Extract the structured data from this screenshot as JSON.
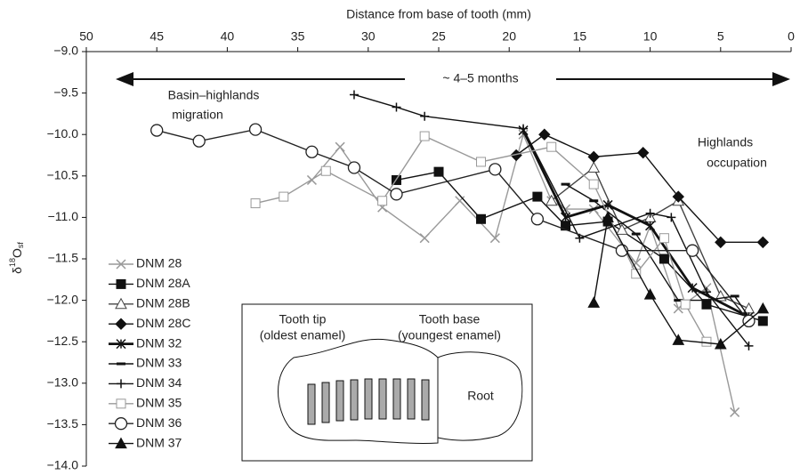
{
  "chart_data": {
    "type": "line",
    "x_axis_label": "Distance from base of tooth (mm)",
    "y_axis_label": {
      "base": "δ",
      "sup": "18",
      "main": "O",
      "sub": "sf"
    },
    "xlim": [
      50,
      0
    ],
    "xticks": [
      50,
      45,
      40,
      35,
      30,
      25,
      20,
      15,
      10,
      5,
      0
    ],
    "ylim": [
      -14,
      -9
    ],
    "yticks": [
      {
        "value": -9,
        "label": "−9.0"
      },
      {
        "value": -9.5,
        "label": "−9.5"
      },
      {
        "value": -10,
        "label": "−10.0"
      },
      {
        "value": -10.5,
        "label": "−10.5"
      },
      {
        "value": -11,
        "label": "−11.0"
      },
      {
        "value": -11.5,
        "label": "−11.5"
      },
      {
        "value": -12,
        "label": "−12.0"
      },
      {
        "value": -12.5,
        "label": "−12.5"
      },
      {
        "value": -13,
        "label": "−13.0"
      },
      {
        "value": -13.5,
        "label": "−13.5"
      },
      {
        "value": -14,
        "label": "−14.0"
      }
    ],
    "annotations": {
      "span": "~ 4–5 months",
      "left_1": "Basin–highlands",
      "left_2": "migration",
      "right_1": "Highlands",
      "right_2": "occupation",
      "tip_1": "Tooth tip",
      "tip_2": "(oldest enamel)",
      "base_1": "Tooth base",
      "base_2": "(youngest enamel)",
      "root": "Root"
    },
    "legend_position": "lower left",
    "series": [
      {
        "name": "DNM 28",
        "color": "#999999",
        "marker": "cross",
        "x": [
          34,
          32,
          29,
          26,
          23.5,
          21,
          19,
          17,
          16,
          14,
          11,
          10,
          8,
          6,
          4
        ],
        "values": [
          -10.55,
          -10.15,
          -10.88,
          -11.25,
          -10.8,
          -11.25,
          -10.0,
          -10.8,
          -10.9,
          -10.9,
          -11.55,
          -11.1,
          -12.1,
          -11.85,
          -13.35
        ]
      },
      {
        "name": "DNM 28A",
        "color": "#111111",
        "marker": "square",
        "x": [
          28,
          25,
          22,
          18,
          16,
          13,
          9,
          6,
          2
        ],
        "values": [
          -10.55,
          -10.45,
          -11.02,
          -10.75,
          -11.1,
          -11.05,
          -11.5,
          -12.05,
          -12.25
        ]
      },
      {
        "name": "DNM 28B",
        "color": "#444444",
        "marker": "triangle-open",
        "x": [
          17,
          14,
          12,
          10,
          8,
          5,
          3
        ],
        "values": [
          -10.8,
          -10.4,
          -11.15,
          -11.0,
          -10.8,
          -11.95,
          -12.1
        ]
      },
      {
        "name": "DNM 28C",
        "color": "#111111",
        "marker": "diamond",
        "x": [
          19.5,
          17.5,
          14,
          10.5,
          8,
          5,
          2
        ],
        "values": [
          -10.25,
          -10.0,
          -10.27,
          -10.22,
          -10.75,
          -11.3,
          -11.3
        ]
      },
      {
        "name": "DNM 32",
        "color": "#111111",
        "marker": "star",
        "thick": true,
        "x": [
          19,
          16,
          13,
          10,
          7,
          3
        ],
        "values": [
          -9.95,
          -11.0,
          -10.85,
          -11.1,
          -11.85,
          -12.2
        ]
      },
      {
        "name": "DNM 33",
        "color": "#111111",
        "marker": "dash",
        "x": [
          16,
          14,
          11,
          8,
          6,
          4,
          3
        ],
        "values": [
          -10.6,
          -10.8,
          -11.2,
          -12.0,
          -12.0,
          -11.95,
          -12.2
        ]
      },
      {
        "name": "DNM 34",
        "color": "#111111",
        "marker": "plus",
        "x": [
          31,
          28,
          26,
          19,
          15,
          10,
          8.5,
          6,
          3
        ],
        "values": [
          -9.52,
          -9.67,
          -9.78,
          -9.93,
          -11.25,
          -10.95,
          -11.0,
          -11.9,
          -12.55
        ]
      },
      {
        "name": "DNM 35",
        "color": "#999999",
        "marker": "square-open",
        "x": [
          38,
          36,
          33,
          29,
          26,
          22,
          17,
          14,
          11,
          9,
          7.5,
          6
        ],
        "values": [
          -10.83,
          -10.75,
          -10.44,
          -10.8,
          -10.02,
          -10.33,
          -10.15,
          -10.6,
          -11.68,
          -11.25,
          -12.05,
          -12.5
        ]
      },
      {
        "name": "DNM 36",
        "color": "#222222",
        "marker": "circle-open",
        "x": [
          45,
          42,
          38,
          34,
          31,
          28,
          21,
          18,
          12,
          7,
          3
        ],
        "values": [
          -9.95,
          -10.08,
          -9.94,
          -10.21,
          -10.4,
          -10.72,
          -10.42,
          -11.02,
          -11.4,
          -11.4,
          -12.25
        ]
      },
      {
        "name": "DNM 37",
        "color": "#111111",
        "marker": "triangle",
        "x": [
          14,
          13,
          10,
          8,
          5,
          2
        ],
        "values": [
          -12.03,
          -11.0,
          -11.93,
          -12.48,
          -12.53,
          -12.1
        ]
      }
    ]
  }
}
